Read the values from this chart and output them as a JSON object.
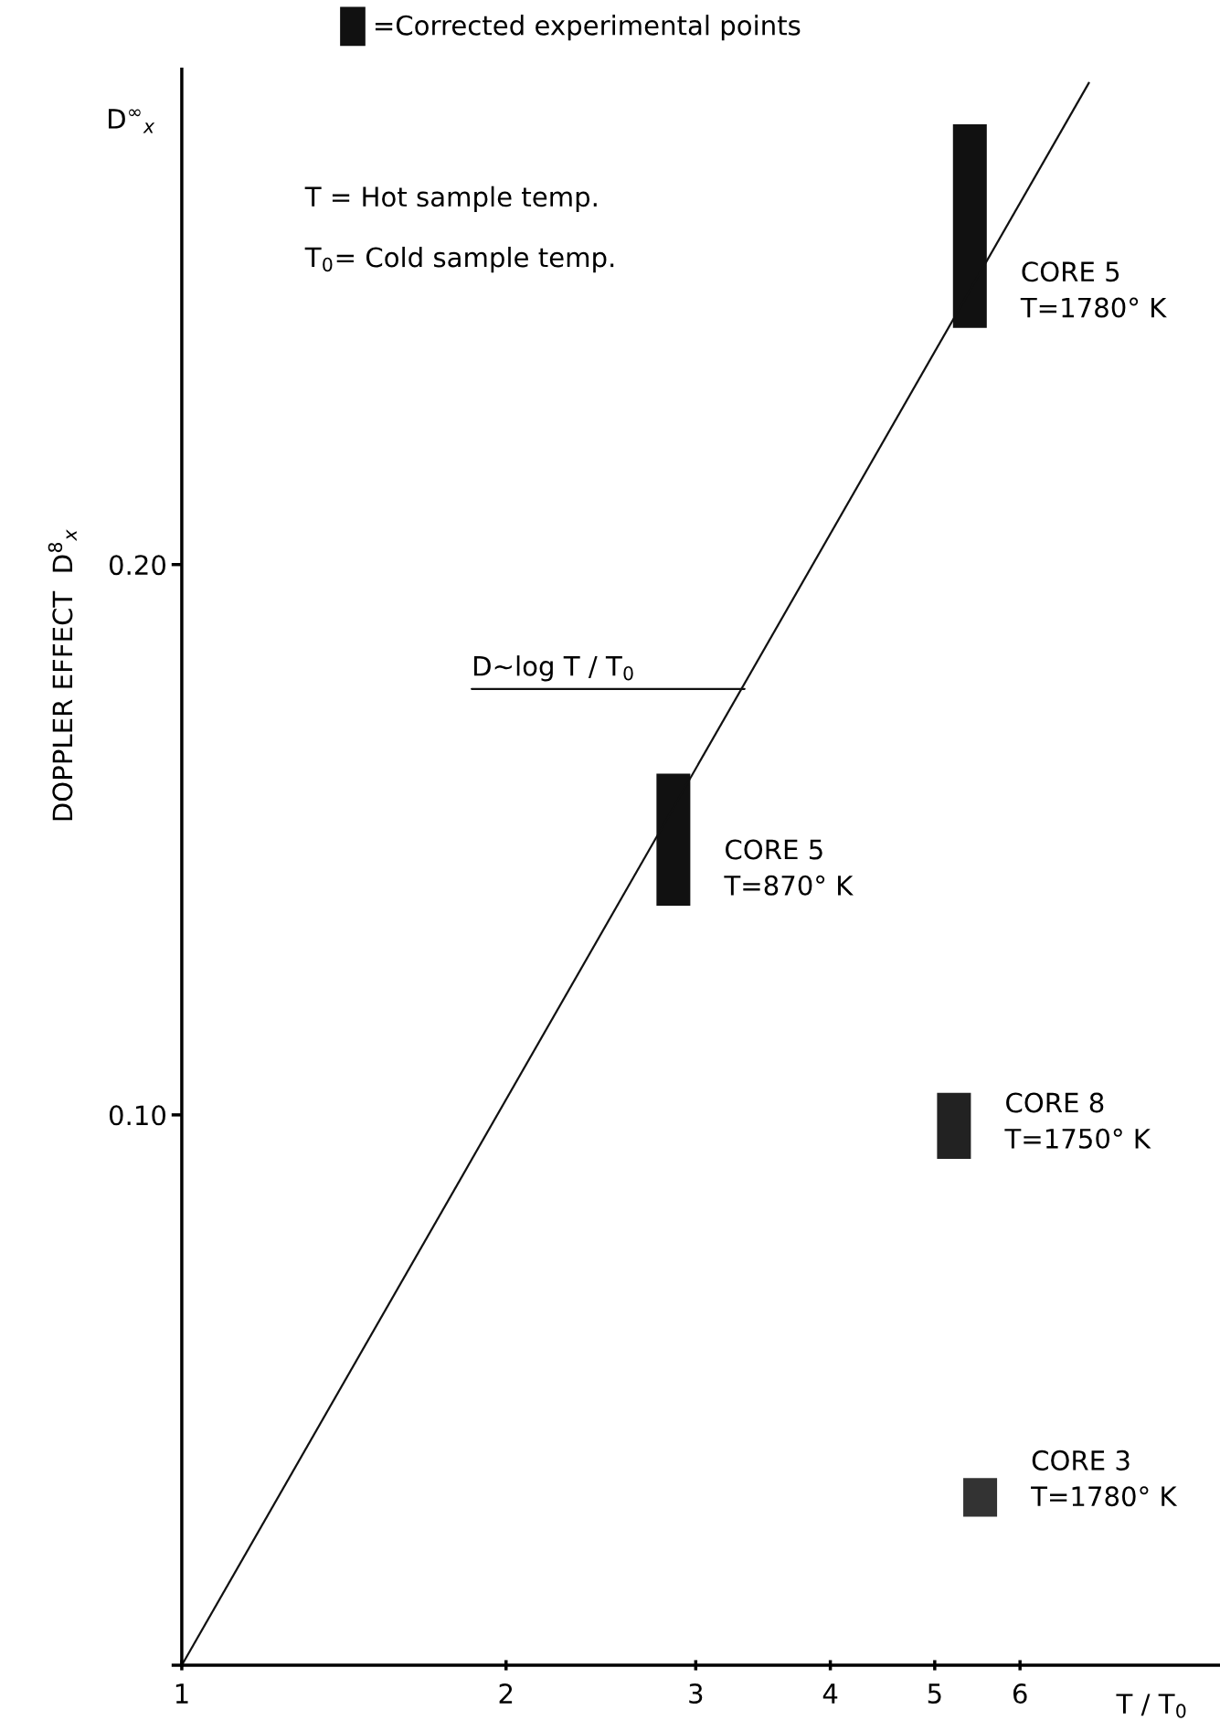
{
  "chart_data": {
    "type": "bar",
    "ylabel": "DOPPLER EFFECT  D$^{8}$$_{x}$",
    "xlabel": "T / T$_{0}$",
    "log": "x",
    "xlim": [
      1,
      9.2
    ],
    "xticks": [
      1,
      2,
      3,
      4,
      5,
      6
    ],
    "ylim": [
      0,
      0.29
    ],
    "yticks": [
      {
        "value": 0,
        "label": null
      },
      {
        "value": 0.1,
        "label": "0.10"
      },
      {
        "value": 0.2,
        "label": "0.20"
      }
    ],
    "grid": false,
    "legend": "top",
    "series": [
      {
        "name": "=Corrected experimental points",
        "x": [
          2.86,
          5.21,
          5.39,
          5.51
        ],
        "base": [
          0.138,
          0.092,
          0.243,
          0.027
        ],
        "values": [
          0.024,
          0.012,
          0.037,
          0.007
        ],
        "colors": [
          "#111111",
          "#222222",
          "#111111",
          "#333333"
        ]
      },
      {
        "type": "line",
        "x": [
          1,
          6.95
        ],
        "values": [
          0,
          0.2875
        ],
        "color": "#111111"
      }
    ],
    "annotations": [
      "D$^{∞}$$_{x}$",
      "T = Hot sample temp.",
      "T$_{0}$= Cold sample temp.",
      {
        "text": "D~log T / T$_{0}$",
        "x": 3.33,
        "y": 0.1774
      },
      {
        "text": "CORE 5\nT=870° K",
        "x": 2.86,
        "y": 0.138
      },
      {
        "text": "CORE 5\nT=1780° K",
        "x": 5.39,
        "y": 0.243
      },
      {
        "text": "CORE 8\nT=1750° K",
        "x": 5.21,
        "y": 0.092
      },
      {
        "text": "CORE 3\nT=1780° K",
        "x": 5.51,
        "y": 0.027
      }
    ]
  }
}
